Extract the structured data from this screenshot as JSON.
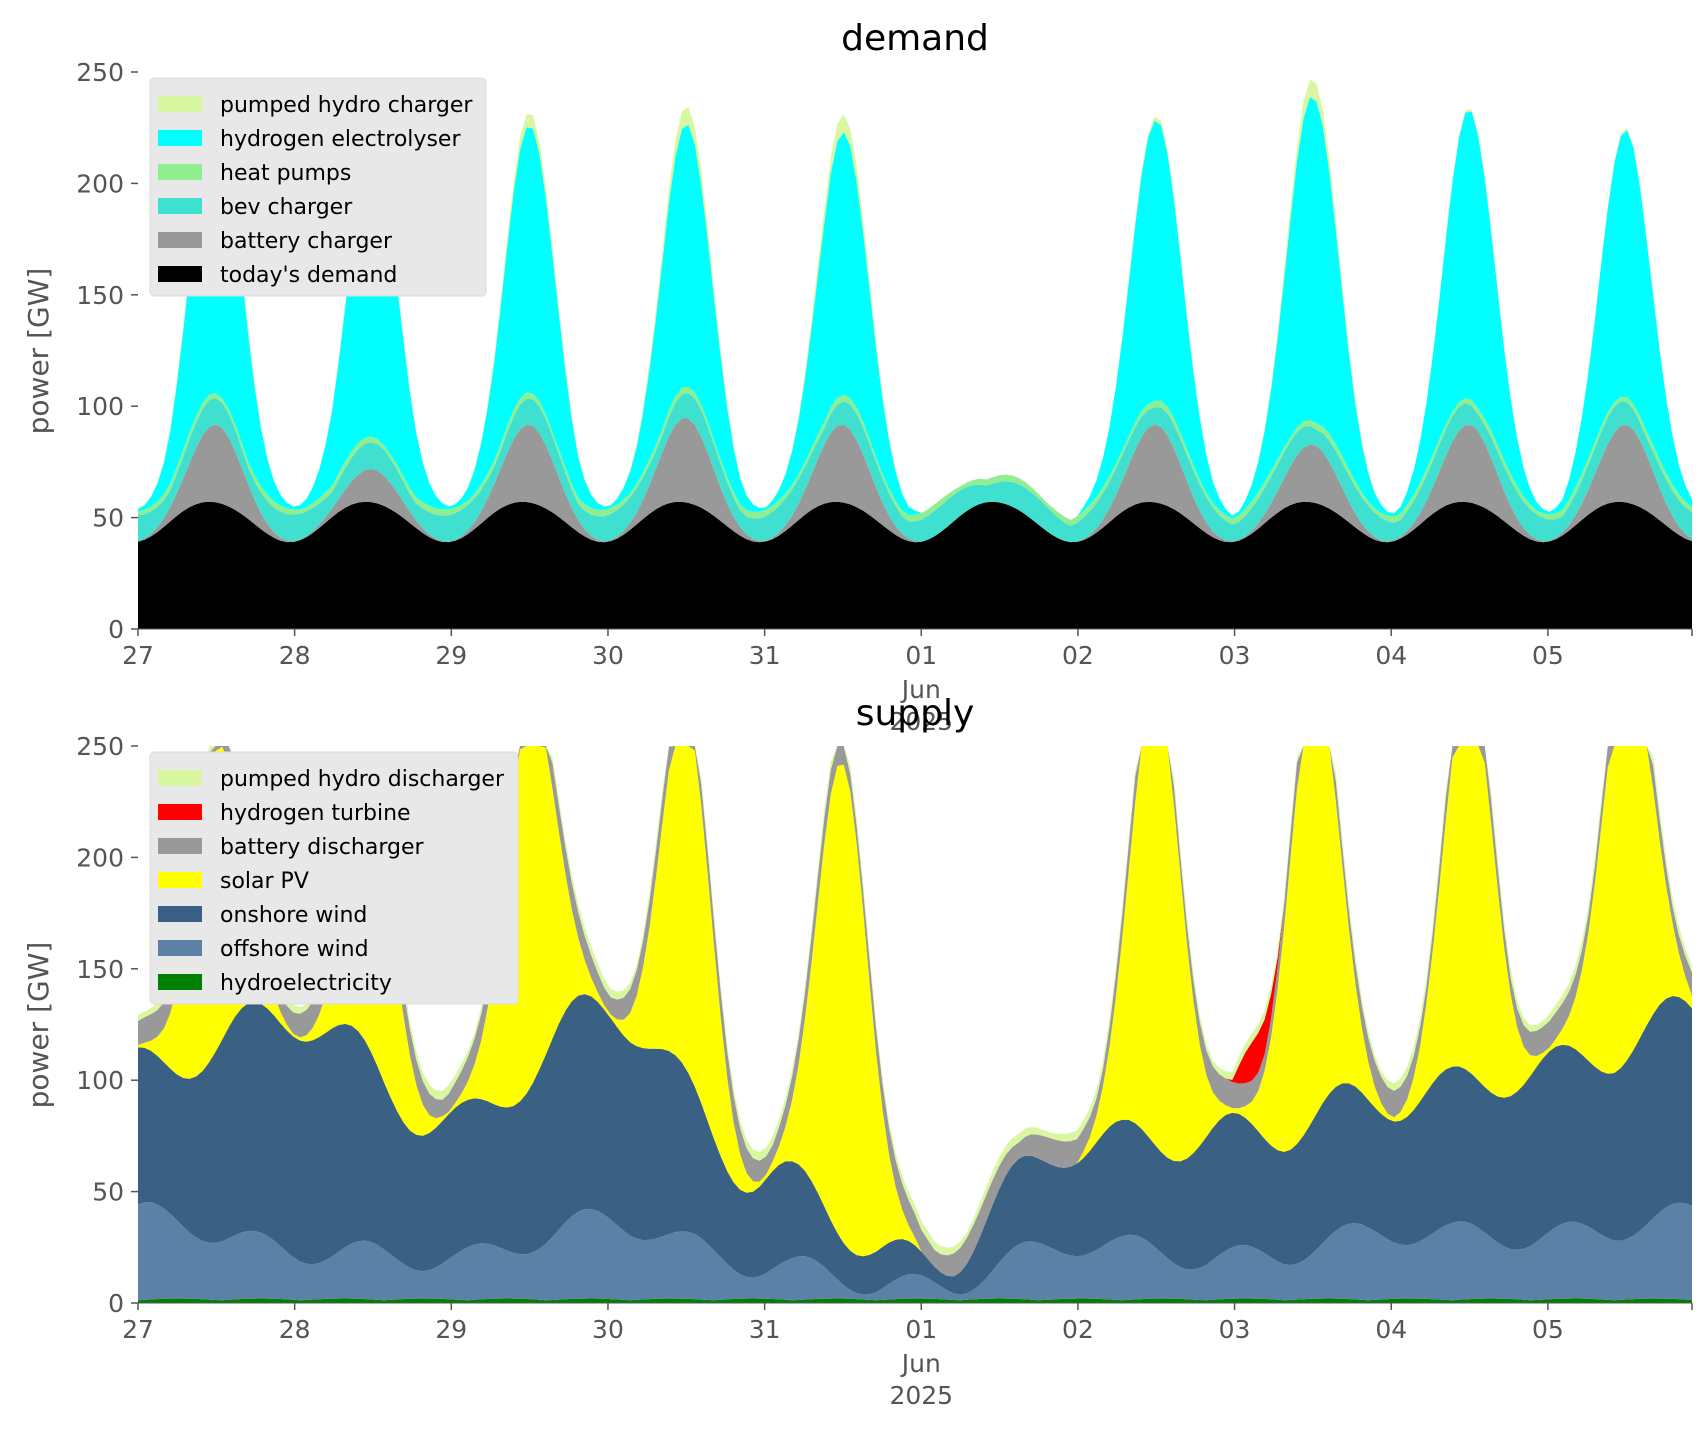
{
  "chart_data": [
    {
      "type": "area",
      "stacked": true,
      "title": "demand",
      "ylabel": "power [GW]",
      "xlabel": "",
      "ylim": [
        0,
        250
      ],
      "yticks": [
        0,
        50,
        100,
        150,
        200,
        250
      ],
      "xlim_days": [
        0,
        9.92
      ],
      "xticks": [
        {
          "day": 0,
          "label": "27"
        },
        {
          "day": 1,
          "label": "28"
        },
        {
          "day": 2,
          "label": "29"
        },
        {
          "day": 3,
          "label": "30"
        },
        {
          "day": 4,
          "label": "31"
        },
        {
          "day": 5,
          "label": "01"
        },
        {
          "day": 6,
          "label": "02"
        },
        {
          "day": 7,
          "label": "03"
        },
        {
          "day": 8,
          "label": "04"
        },
        {
          "day": 9,
          "label": "05"
        }
      ],
      "xtick_sublabels": [
        "Jun",
        "2025"
      ],
      "legend_position": "upper-left",
      "grid": false,
      "series": [
        {
          "name": "today's demand",
          "color": "#000000",
          "base": 50,
          "amp": 11,
          "mid_day_dip": 4
        },
        {
          "name": "battery charger",
          "color": "#999999",
          "day_peaks": [
            35,
            15,
            35,
            38,
            35,
            0,
            35,
            26,
            35,
            35
          ]
        },
        {
          "name": "bev charger",
          "color": "#40e0d0",
          "level": 12
        },
        {
          "name": "heat pumps",
          "color": "#90ee90",
          "level": 3
        },
        {
          "name": "hydrogen electrolyser",
          "color": "#00ffff",
          "day_peaks": [
            128,
            128,
            120,
            118,
            118,
            0,
            126,
            146,
            130,
            120
          ]
        },
        {
          "name": "pumped hydro charger",
          "color": "#d9f7a1",
          "day_peaks": [
            4,
            1,
            6,
            8,
            8,
            0,
            2,
            8,
            1,
            1
          ]
        }
      ]
    },
    {
      "type": "area",
      "stacked": true,
      "title": "supply",
      "ylabel": "power [GW]",
      "xlabel": "",
      "ylim": [
        0,
        250
      ],
      "yticks": [
        0,
        50,
        100,
        150,
        200,
        250
      ],
      "xlim_days": [
        0,
        9.92
      ],
      "xticks": [
        {
          "day": 0,
          "label": "27"
        },
        {
          "day": 1,
          "label": "28"
        },
        {
          "day": 2,
          "label": "29"
        },
        {
          "day": 3,
          "label": "30"
        },
        {
          "day": 4,
          "label": "31"
        },
        {
          "day": 5,
          "label": "01"
        },
        {
          "day": 6,
          "label": "02"
        },
        {
          "day": 7,
          "label": "03"
        },
        {
          "day": 8,
          "label": "04"
        },
        {
          "day": 9,
          "label": "05"
        }
      ],
      "xtick_sublabels": [
        "Jun",
        "2025"
      ],
      "legend_position": "upper-left",
      "grid": false,
      "series": [
        {
          "name": "hydroelectricity",
          "color": "#008000",
          "level": 2
        },
        {
          "name": "offshore wind",
          "color": "#5b82a6",
          "daily_levels": [
            38,
            22,
            18,
            35,
            15,
            5,
            25,
            18,
            30,
            28,
            38
          ]
        },
        {
          "name": "onshore wind",
          "color": "#3a6183",
          "daily_levels": [
            65,
            105,
            60,
            95,
            40,
            10,
            45,
            55,
            60,
            75,
            90
          ]
        },
        {
          "name": "solar PV",
          "color": "#ffff00",
          "day_peaks": [
            135,
            100,
            170,
            160,
            215,
            0,
            205,
            195,
            175,
            180
          ]
        },
        {
          "name": "battery discharger",
          "color": "#999999",
          "level": 12
        },
        {
          "name": "hydrogen turbine",
          "color": "#ff0000",
          "event": {
            "start_day": 6.98,
            "end_day": 7.3,
            "peak": 18
          }
        },
        {
          "name": "pumped hydro discharger",
          "color": "#d9f7a1",
          "level": 4
        }
      ]
    }
  ]
}
